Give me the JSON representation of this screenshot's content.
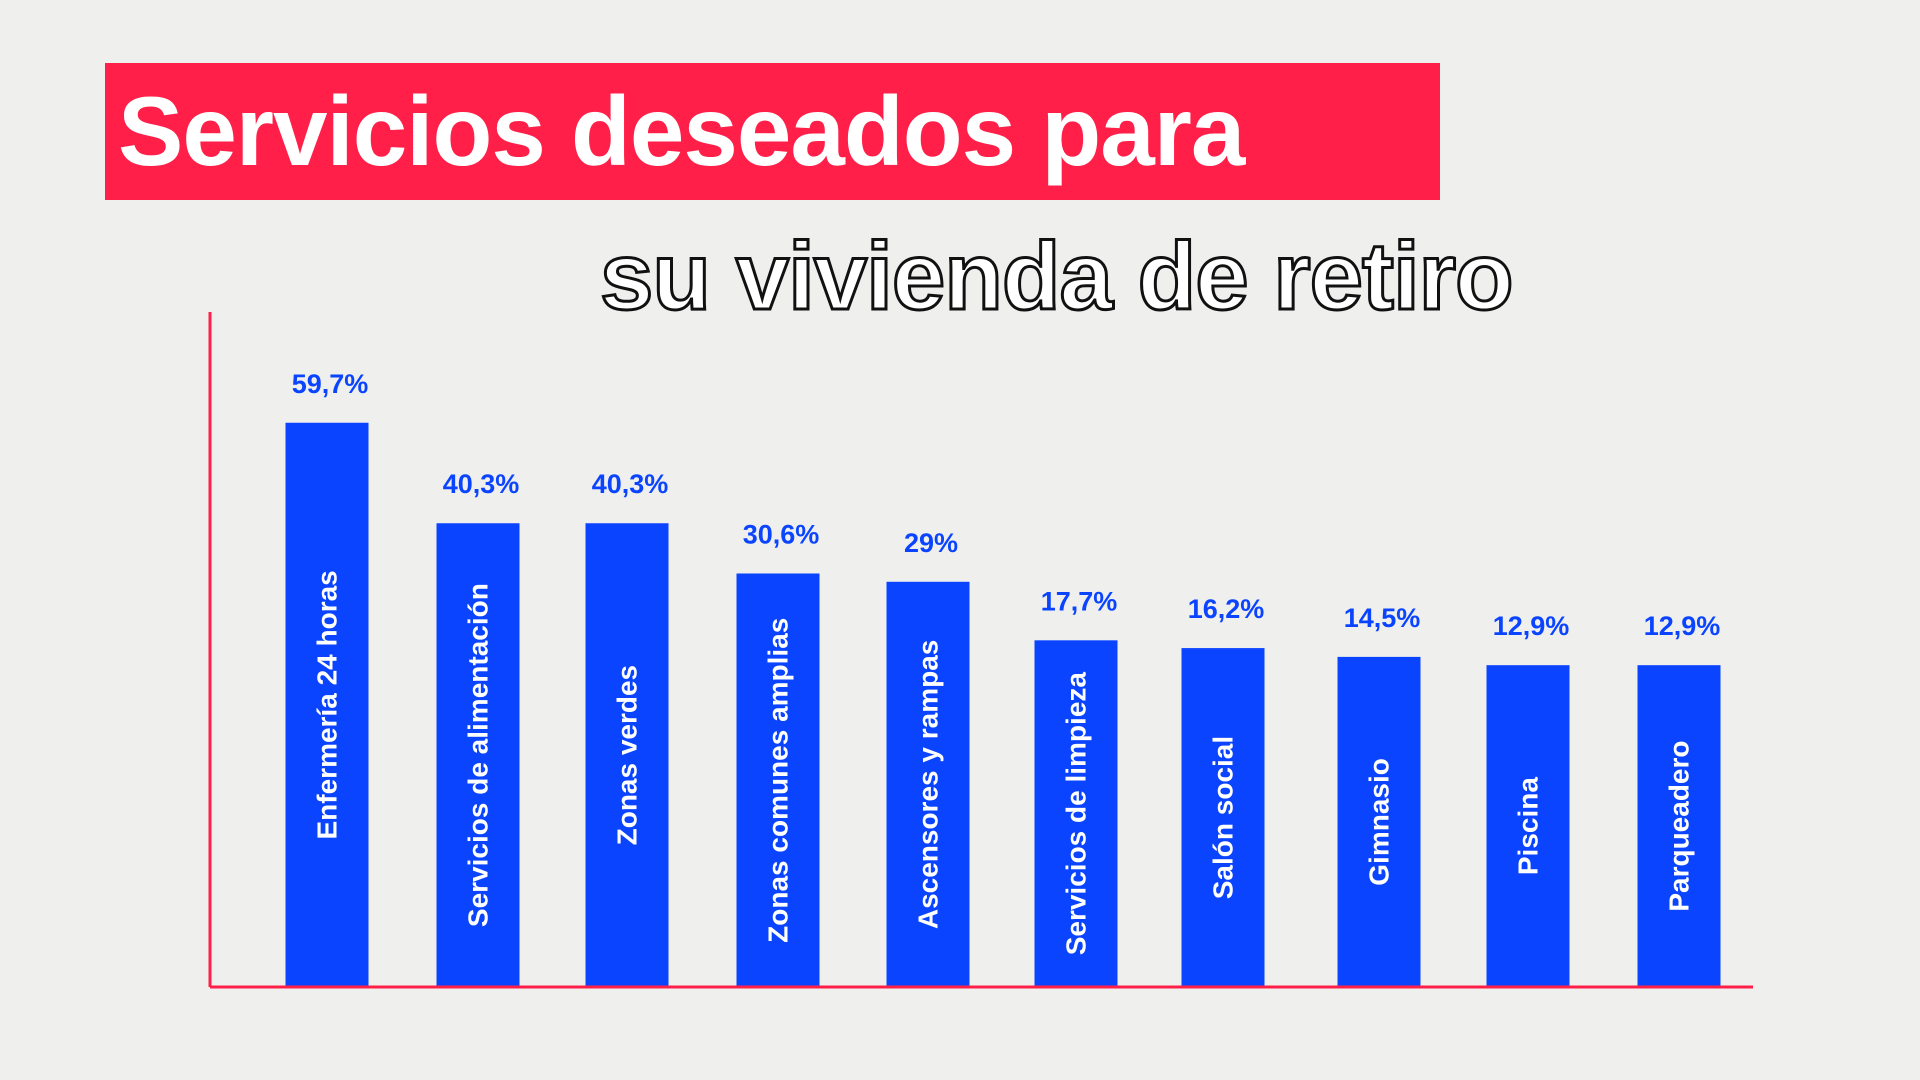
{
  "title": "Servicios deseados para",
  "subtitle": "su vivienda de retiro",
  "colors": {
    "title_bg": "#ff1f48",
    "bar": "#0a44ff",
    "axis": "#ff1f48",
    "value_label": "#0a44ff",
    "background": "#efefee"
  },
  "chart_data": {
    "type": "bar",
    "title": "Servicios deseados para su vivienda de retiro",
    "categories": [
      "Enfermería 24 horas",
      "Servicios de alimentación",
      "Zonas verdes",
      "Zonas comunes amplias",
      "Ascensores y rampas",
      "Servicios de limpieza",
      "Salón social",
      "Gimnasio",
      "Piscina",
      "Parqueadero"
    ],
    "values": [
      59.7,
      40.3,
      40.3,
      30.6,
      29,
      17.7,
      16.2,
      14.5,
      12.9,
      12.9
    ],
    "data_labels": [
      "59,7%",
      "40,3%",
      "40,3%",
      "30,6%",
      "29%",
      "17,7%",
      "16,2%",
      "14,5%",
      "12,9%",
      "12,9%"
    ],
    "category_label_orientation": "vertical-inside-bar",
    "grid": false,
    "legend": "none",
    "xlabel": "",
    "ylabel": ""
  }
}
